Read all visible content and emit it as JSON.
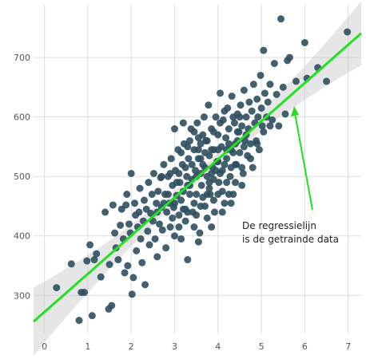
{
  "chart_data": {
    "type": "scatter",
    "title": "",
    "xlabel": "",
    "ylabel": "",
    "xlim": [
      -0.25,
      7.3
    ],
    "ylim": [
      236,
      790
    ],
    "grid": true,
    "x_ticks": [
      "0",
      "1",
      "2",
      "3",
      "4",
      "5",
      "6",
      "7"
    ],
    "y_ticks": [
      "300",
      "400",
      "500",
      "600",
      "700"
    ],
    "point_color": "#2f4f5f",
    "regression": {
      "color": "#22e022",
      "band_color": "#c8c8c8",
      "intercept": 272,
      "slope": 64.2,
      "x_range": [
        -0.25,
        7.3
      ]
    },
    "series": [
      {
        "points": [
          [
            0.28,
            313
          ],
          [
            0.62,
            353
          ],
          [
            0.8,
            258
          ],
          [
            0.85,
            305
          ],
          [
            0.92,
            305
          ],
          [
            0.98,
            358
          ],
          [
            1.05,
            385
          ],
          [
            1.1,
            266
          ],
          [
            1.15,
            360
          ],
          [
            1.2,
            370
          ],
          [
            1.3,
            331
          ],
          [
            1.4,
            440
          ],
          [
            1.48,
            277
          ],
          [
            1.5,
            352
          ],
          [
            1.55,
            283
          ],
          [
            1.58,
            452
          ],
          [
            1.62,
            405
          ],
          [
            1.65,
            380
          ],
          [
            1.7,
            360
          ],
          [
            1.75,
            418
          ],
          [
            1.78,
            445
          ],
          [
            1.82,
            395
          ],
          [
            1.85,
            338
          ],
          [
            1.88,
            452
          ],
          [
            1.9,
            470
          ],
          [
            1.92,
            350
          ],
          [
            1.95,
            420
          ],
          [
            1.98,
            405
          ],
          [
            2.0,
            505
          ],
          [
            2.02,
            302
          ],
          [
            2.05,
            330
          ],
          [
            2.08,
            455
          ],
          [
            2.1,
            435
          ],
          [
            2.12,
            375
          ],
          [
            2.15,
            415
          ],
          [
            2.18,
            440
          ],
          [
            2.2,
            480
          ],
          [
            2.22,
            395
          ],
          [
            2.25,
            355
          ],
          [
            2.28,
            425
          ],
          [
            2.3,
            460
          ],
          [
            2.32,
            318
          ],
          [
            2.35,
            445
          ],
          [
            2.38,
            408
          ],
          [
            2.4,
            490
          ],
          [
            2.42,
            385
          ],
          [
            2.45,
            438
          ],
          [
            2.48,
            470
          ],
          [
            2.5,
            425
          ],
          [
            2.52,
            505
          ],
          [
            2.55,
            395
          ],
          [
            2.58,
            455
          ],
          [
            2.6,
            365
          ],
          [
            2.62,
            475
          ],
          [
            2.65,
            420
          ],
          [
            2.68,
            498
          ],
          [
            2.7,
            448
          ],
          [
            2.72,
            410
          ],
          [
            2.75,
            520
          ],
          [
            2.78,
            470
          ],
          [
            2.8,
            380
          ],
          [
            2.82,
            440
          ],
          [
            2.85,
            500
          ],
          [
            2.88,
            455
          ],
          [
            2.9,
            415
          ],
          [
            2.92,
            530
          ],
          [
            2.95,
            485
          ],
          [
            2.98,
            448
          ],
          [
            3.0,
            400
          ],
          [
            3.02,
            510
          ],
          [
            3.05,
            468
          ],
          [
            3.08,
            545
          ],
          [
            3.1,
            435
          ],
          [
            3.12,
            490
          ],
          [
            3.15,
            395
          ],
          [
            3.18,
            520
          ],
          [
            3.2,
            475
          ],
          [
            3.22,
            555
          ],
          [
            3.25,
            445
          ],
          [
            3.28,
            500
          ],
          [
            3.3,
            360
          ],
          [
            3.32,
            530
          ],
          [
            3.35,
            470
          ],
          [
            3.38,
            580
          ],
          [
            3.4,
            495
          ],
          [
            3.42,
            440
          ],
          [
            3.45,
            545
          ],
          [
            3.48,
            510
          ],
          [
            3.5,
            470
          ],
          [
            3.52,
            590
          ],
          [
            3.55,
            530
          ],
          [
            3.58,
            405
          ],
          [
            3.6,
            555
          ],
          [
            3.62,
            485
          ],
          [
            3.65,
            520
          ],
          [
            3.68,
            600
          ],
          [
            3.7,
            450
          ],
          [
            3.72,
            560
          ],
          [
            3.75,
            500
          ],
          [
            3.78,
            620
          ],
          [
            3.8,
            535
          ],
          [
            3.82,
            470
          ],
          [
            3.85,
            580
          ],
          [
            3.88,
            515
          ],
          [
            3.9,
            545
          ],
          [
            3.92,
            440
          ],
          [
            3.95,
            600
          ],
          [
            3.98,
            525
          ],
          [
            4.0,
            570
          ],
          [
            4.02,
            490
          ],
          [
            4.05,
            640
          ],
          [
            4.08,
            550
          ],
          [
            4.1,
            510
          ],
          [
            4.12,
            595
          ],
          [
            4.15,
            455
          ],
          [
            4.18,
            565
          ],
          [
            4.2,
            530
          ],
          [
            4.22,
            615
          ],
          [
            4.25,
            580
          ],
          [
            4.28,
            500
          ],
          [
            4.3,
            545
          ],
          [
            4.32,
            635
          ],
          [
            4.35,
            470
          ],
          [
            4.38,
            590
          ],
          [
            4.4,
            555
          ],
          [
            4.42,
            520
          ],
          [
            4.45,
            605
          ],
          [
            4.48,
            575
          ],
          [
            4.5,
            540
          ],
          [
            4.52,
            620
          ],
          [
            4.55,
            585
          ],
          [
            4.58,
            505
          ],
          [
            4.6,
            645
          ],
          [
            4.62,
            560
          ],
          [
            4.65,
            600
          ],
          [
            4.68,
            535
          ],
          [
            4.7,
            580
          ],
          [
            4.72,
            625
          ],
          [
            4.75,
            555
          ],
          [
            4.78,
            610
          ],
          [
            4.8,
            515
          ],
          [
            4.82,
            655
          ],
          [
            4.85,
            590
          ],
          [
            4.88,
            560
          ],
          [
            4.9,
            630
          ],
          [
            4.92,
            600
          ],
          [
            4.95,
            545
          ],
          [
            4.98,
            670
          ],
          [
            5.0,
            615
          ],
          [
            5.02,
            585
          ],
          [
            5.05,
            712
          ],
          [
            5.08,
            640
          ],
          [
            5.12,
            600
          ],
          [
            5.15,
            625
          ],
          [
            5.2,
            655
          ],
          [
            5.25,
            595
          ],
          [
            5.3,
            690
          ],
          [
            5.35,
            638
          ],
          [
            5.4,
            585
          ],
          [
            5.45,
            765
          ],
          [
            5.5,
            650
          ],
          [
            5.55,
            605
          ],
          [
            5.6,
            695
          ],
          [
            5.65,
            700
          ],
          [
            5.8,
            660
          ],
          [
            6.0,
            725
          ],
          [
            6.05,
            665
          ],
          [
            6.3,
            683
          ],
          [
            6.5,
            660
          ],
          [
            6.98,
            743
          ],
          [
            3.1,
            505
          ],
          [
            3.3,
            485
          ],
          [
            3.45,
            455
          ],
          [
            3.6,
            530
          ],
          [
            3.75,
            470
          ],
          [
            3.9,
            495
          ],
          [
            4.05,
            505
          ],
          [
            4.25,
            470
          ],
          [
            4.4,
            490
          ],
          [
            4.55,
            485
          ],
          [
            3.15,
            540
          ],
          [
            3.35,
            560
          ],
          [
            3.55,
            565
          ],
          [
            3.7,
            540
          ],
          [
            3.85,
            545
          ],
          [
            4.0,
            545
          ],
          [
            4.15,
            520
          ],
          [
            4.35,
            540
          ],
          [
            4.5,
            600
          ],
          [
            4.65,
            570
          ],
          [
            2.9,
            505
          ],
          [
            3.05,
            490
          ],
          [
            3.25,
            515
          ],
          [
            3.4,
            520
          ],
          [
            3.6,
            505
          ],
          [
            3.8,
            480
          ],
          [
            3.95,
            510
          ],
          [
            4.1,
            475
          ],
          [
            4.3,
            515
          ],
          [
            4.45,
            560
          ],
          [
            2.7,
            500
          ],
          [
            2.85,
            470
          ],
          [
            3.0,
            455
          ],
          [
            3.2,
            445
          ],
          [
            3.35,
            485
          ],
          [
            3.5,
            500
          ],
          [
            3.7,
            515
          ],
          [
            3.85,
            505
          ],
          [
            4.0,
            525
          ],
          [
            4.2,
            545
          ],
          [
            2.6,
            440
          ],
          [
            2.75,
            455
          ],
          [
            2.95,
            430
          ],
          [
            3.15,
            460
          ],
          [
            3.3,
            440
          ],
          [
            3.5,
            435
          ],
          [
            3.65,
            465
          ],
          [
            3.8,
            490
          ],
          [
            4.0,
            470
          ],
          [
            4.2,
            490
          ],
          [
            3.25,
            425
          ],
          [
            3.45,
            415
          ],
          [
            3.6,
            450
          ],
          [
            3.75,
            430
          ],
          [
            3.9,
            460
          ],
          [
            4.1,
            440
          ],
          [
            4.3,
            455
          ],
          [
            3.1,
            415
          ],
          [
            3.55,
            390
          ],
          [
            3.85,
            415
          ],
          [
            4.05,
            590
          ],
          [
            4.25,
            555
          ],
          [
            4.45,
            575
          ],
          [
            4.6,
            550
          ],
          [
            4.75,
            530
          ],
          [
            4.9,
            555
          ],
          [
            5.05,
            575
          ],
          [
            5.2,
            585
          ],
          [
            4.4,
            520
          ],
          [
            4.55,
            515
          ],
          [
            3.0,
            580
          ],
          [
            3.2,
            590
          ],
          [
            3.45,
            575
          ],
          [
            3.65,
            570
          ],
          [
            3.9,
            575
          ],
          [
            4.15,
            610
          ],
          [
            4.35,
            600
          ],
          [
            3.3,
            550
          ],
          [
            3.55,
            545
          ],
          [
            3.75,
            560
          ]
        ]
      }
    ],
    "annotations": [
      {
        "lines": [
          "De regressielijn",
          "is de getrainde data"
        ],
        "arrow_color": "#22e022"
      }
    ]
  }
}
